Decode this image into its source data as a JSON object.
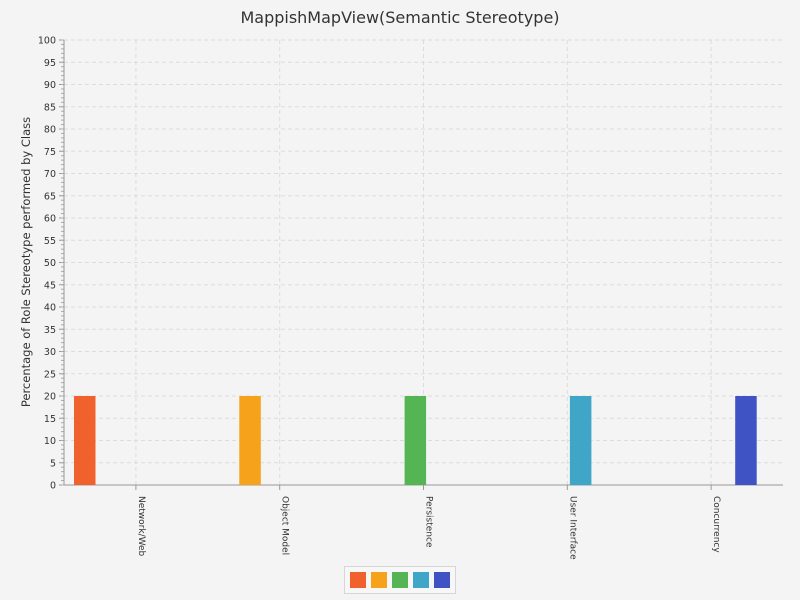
{
  "chart_data": {
    "type": "bar",
    "title": "MappishMapView(Semantic Stereotype)",
    "xlabel": "",
    "ylabel": "Percentage of Role Stereotype performed by Class",
    "categories": [
      "Network/Web",
      "Object Model",
      "Persistence",
      "User Interface",
      "Concurrency"
    ],
    "series": [
      {
        "color": "#f0612e",
        "values": [
          20,
          0,
          0,
          0,
          0
        ]
      },
      {
        "color": "#f7a21b",
        "values": [
          0,
          20,
          0,
          0,
          0
        ]
      },
      {
        "color": "#55b555",
        "values": [
          0,
          0,
          20,
          0,
          0
        ]
      },
      {
        "color": "#3fa6c8",
        "values": [
          0,
          0,
          0,
          20,
          0
        ]
      },
      {
        "color": "#4053c4",
        "values": [
          0,
          0,
          0,
          0,
          20
        ]
      }
    ],
    "ylim": [
      0,
      100
    ],
    "ytick_step": 5,
    "grid": true,
    "legend_position": "bottom"
  }
}
